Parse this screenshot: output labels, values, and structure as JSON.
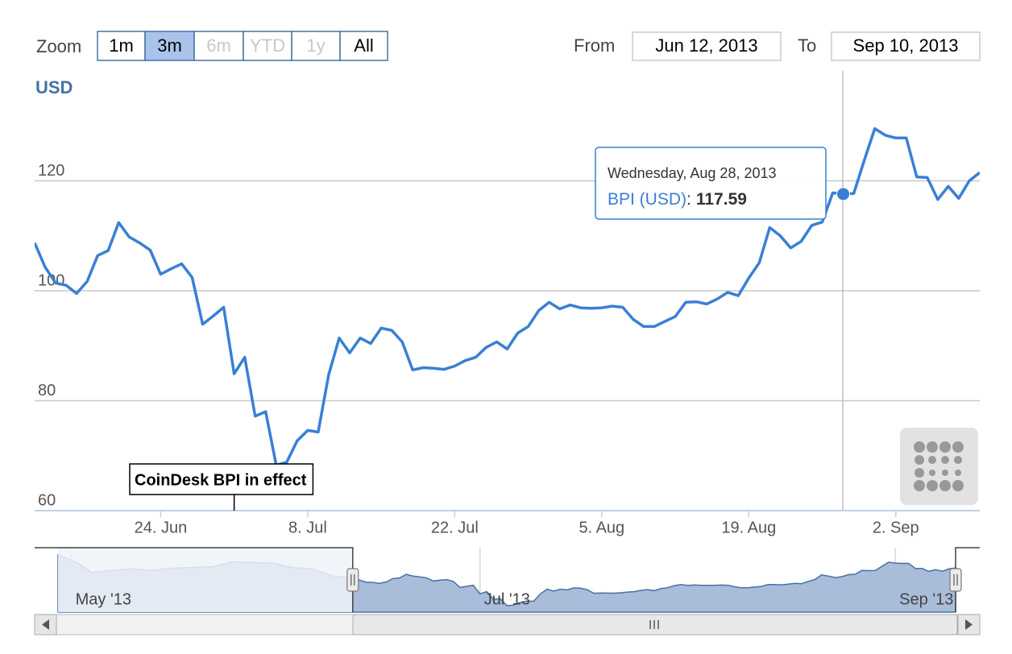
{
  "chart_data": {
    "type": "line",
    "zoom": {
      "label": "Zoom",
      "buttons": [
        {
          "label": "1m",
          "state": "normal"
        },
        {
          "label": "3m",
          "state": "selected"
        },
        {
          "label": "6m",
          "state": "disabled"
        },
        {
          "label": "YTD",
          "state": "disabled"
        },
        {
          "label": "1y",
          "state": "disabled"
        },
        {
          "label": "All",
          "state": "normal"
        }
      ]
    },
    "range": {
      "from_label": "From",
      "from": "Jun 12, 2013",
      "to_label": "To",
      "to": "Sep 10, 2013"
    },
    "y_axis_title": "USD",
    "x": [
      "2013-06-12",
      "2013-06-13",
      "2013-06-14",
      "2013-06-15",
      "2013-06-16",
      "2013-06-17",
      "2013-06-18",
      "2013-06-19",
      "2013-06-20",
      "2013-06-21",
      "2013-06-22",
      "2013-06-23",
      "2013-06-24",
      "2013-06-25",
      "2013-06-26",
      "2013-06-27",
      "2013-06-28",
      "2013-06-29",
      "2013-06-30",
      "2013-07-01",
      "2013-07-02",
      "2013-07-03",
      "2013-07-04",
      "2013-07-05",
      "2013-07-06",
      "2013-07-07",
      "2013-07-08",
      "2013-07-09",
      "2013-07-10",
      "2013-07-11",
      "2013-07-12",
      "2013-07-13",
      "2013-07-14",
      "2013-07-15",
      "2013-07-16",
      "2013-07-17",
      "2013-07-18",
      "2013-07-19",
      "2013-07-20",
      "2013-07-21",
      "2013-07-22",
      "2013-07-23",
      "2013-07-24",
      "2013-07-25",
      "2013-07-26",
      "2013-07-27",
      "2013-07-28",
      "2013-07-29",
      "2013-07-30",
      "2013-07-31",
      "2013-08-01",
      "2013-08-02",
      "2013-08-03",
      "2013-08-04",
      "2013-08-05",
      "2013-08-06",
      "2013-08-07",
      "2013-08-08",
      "2013-08-09",
      "2013-08-10",
      "2013-08-11",
      "2013-08-12",
      "2013-08-13",
      "2013-08-14",
      "2013-08-15",
      "2013-08-16",
      "2013-08-17",
      "2013-08-18",
      "2013-08-19",
      "2013-08-20",
      "2013-08-21",
      "2013-08-22",
      "2013-08-23",
      "2013-08-24",
      "2013-08-25",
      "2013-08-26",
      "2013-08-27",
      "2013-08-28",
      "2013-08-29",
      "2013-08-30",
      "2013-08-31",
      "2013-09-01",
      "2013-09-02",
      "2013-09-03",
      "2013-09-04",
      "2013-09-05",
      "2013-09-06",
      "2013-09-07",
      "2013-09-08",
      "2013-09-09",
      "2013-09-10"
    ],
    "series": [
      {
        "name": "BPI (USD)",
        "color": "#3a7fd5",
        "values": [
          108.7,
          104.3,
          101.4,
          101,
          99.5,
          101.7,
          106.4,
          107.3,
          112.4,
          109.8,
          108.7,
          107.4,
          103,
          104,
          104.9,
          102.4,
          93.9,
          95.4,
          97,
          84.9,
          87.9,
          77.2,
          78,
          68.3,
          68.8,
          72.7,
          74.6,
          74.3,
          84.7,
          91.4,
          88.7,
          91.4,
          90.4,
          93.2,
          92.8,
          90.7,
          85.6,
          86,
          85.9,
          85.7,
          86.3,
          87.3,
          87.9,
          89.7,
          90.7,
          89.4,
          92.3,
          93.5,
          96.4,
          97.9,
          96.7,
          97.4,
          96.9,
          96.8,
          96.9,
          97.2,
          97,
          94.8,
          93.5,
          93.5,
          94.4,
          95.3,
          97.9,
          98,
          97.6,
          98.5,
          99.7,
          99.1,
          102.3,
          105.1,
          111.5,
          110,
          107.8,
          109,
          111.9,
          112.5,
          117.8,
          117.59,
          117.7,
          123.7,
          129.5,
          128.3,
          127.8,
          127.8,
          120.7,
          120.6,
          116.6,
          119,
          116.8,
          120,
          121.5
        ]
      }
    ],
    "xlim": [
      "2013-06-12",
      "2013-09-10"
    ],
    "xticks": [
      {
        "value": "2013-06-24",
        "label": "24. Jun"
      },
      {
        "value": "2013-07-08",
        "label": "8. Jul"
      },
      {
        "value": "2013-07-22",
        "label": "22. Jul"
      },
      {
        "value": "2013-08-05",
        "label": "5. Aug"
      },
      {
        "value": "2013-08-19",
        "label": "19. Aug"
      },
      {
        "value": "2013-09-02",
        "label": "2. Sep"
      }
    ],
    "ylim": [
      60,
      140
    ],
    "yticks": [
      60,
      80,
      100,
      120
    ],
    "grid": true,
    "tooltip": {
      "x": "2013-08-28",
      "header": "Wednesday, Aug 28, 2013",
      "separator": ":"
    },
    "annotations": [
      {
        "x": "2013-07-01",
        "text": "CoinDesk BPI in effect"
      }
    ],
    "navigator": {
      "xlim": [
        "2013-04-29",
        "2013-09-10"
      ],
      "ylim": [
        59,
        150
      ],
      "x": [
        "2013-04-29",
        "2013-05-02",
        "2013-05-04",
        "2013-05-07",
        "2013-05-10",
        "2013-05-13",
        "2013-05-16",
        "2013-05-19",
        "2013-05-22",
        "2013-05-25",
        "2013-05-28",
        "2013-05-31",
        "2013-06-03",
        "2013-06-06",
        "2013-06-09",
        "2013-06-11"
      ],
      "values": [
        140,
        128,
        115,
        118,
        120,
        118,
        121,
        122,
        123,
        130,
        129,
        128,
        122,
        120,
        110,
        108
      ],
      "xticks": [
        {
          "value": "2013-05-01",
          "label": "May '13"
        },
        {
          "value": "2013-07-01",
          "label": "Jul '13"
        },
        {
          "value": "2013-09-01",
          "label": "Sep '13"
        }
      ]
    }
  }
}
